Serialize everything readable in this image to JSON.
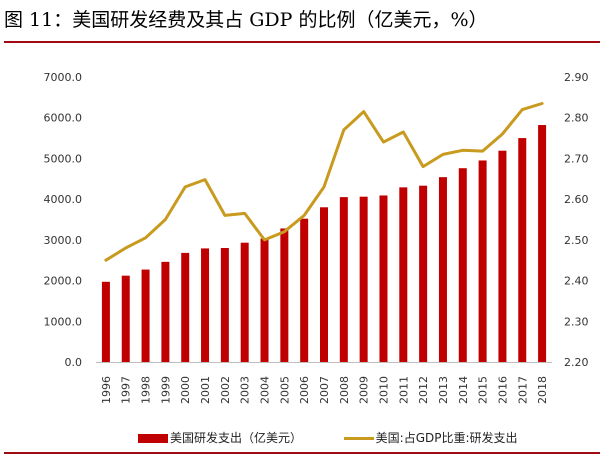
{
  "header": {
    "title": "图 11：美国研发经费及其占 GDP 的比例（亿美元，%）"
  },
  "colors": {
    "bar": "#c00000",
    "line": "#c89a1e",
    "rule": "#a00a12"
  },
  "chart_data": {
    "type": "bar",
    "categories": [
      "1996",
      "1997",
      "1998",
      "1999",
      "2000",
      "2001",
      "2002",
      "2003",
      "2004",
      "2005",
      "2006",
      "2007",
      "2008",
      "2009",
      "2010",
      "2011",
      "2012",
      "2013",
      "2014",
      "2015",
      "2016",
      "2017",
      "2018"
    ],
    "series": [
      {
        "name": "美国研发支出（亿美元）",
        "type": "bar",
        "axis": "left",
        "values": [
          1970,
          2120,
          2270,
          2460,
          2680,
          2790,
          2800,
          2930,
          3030,
          3280,
          3520,
          3800,
          4050,
          4060,
          4090,
          4290,
          4330,
          4540,
          4760,
          4950,
          5190,
          5500,
          5820
        ]
      },
      {
        "name": "美国:占GDP比重:研发支出",
        "type": "line",
        "axis": "right",
        "values": [
          2.45,
          2.48,
          2.505,
          2.55,
          2.63,
          2.648,
          2.56,
          2.565,
          2.5,
          2.52,
          2.56,
          2.63,
          2.77,
          2.815,
          2.74,
          2.765,
          2.68,
          2.71,
          2.72,
          2.718,
          2.76,
          2.82,
          2.835
        ]
      }
    ],
    "y_left": {
      "min": 0,
      "max": 7000,
      "ticks": [
        "0.0",
        "1000.0",
        "2000.0",
        "3000.0",
        "4000.0",
        "5000.0",
        "6000.0",
        "7000.0"
      ]
    },
    "y_right": {
      "min": 2.2,
      "max": 2.9,
      "ticks": [
        "2.20",
        "2.30",
        "2.40",
        "2.50",
        "2.60",
        "2.70",
        "2.80",
        "2.90"
      ]
    },
    "grid": false,
    "legend_position": "bottom"
  },
  "legend": {
    "bar_label": "美国研发支出（亿美元）",
    "line_label": "美国:占GDP比重:研发支出"
  }
}
